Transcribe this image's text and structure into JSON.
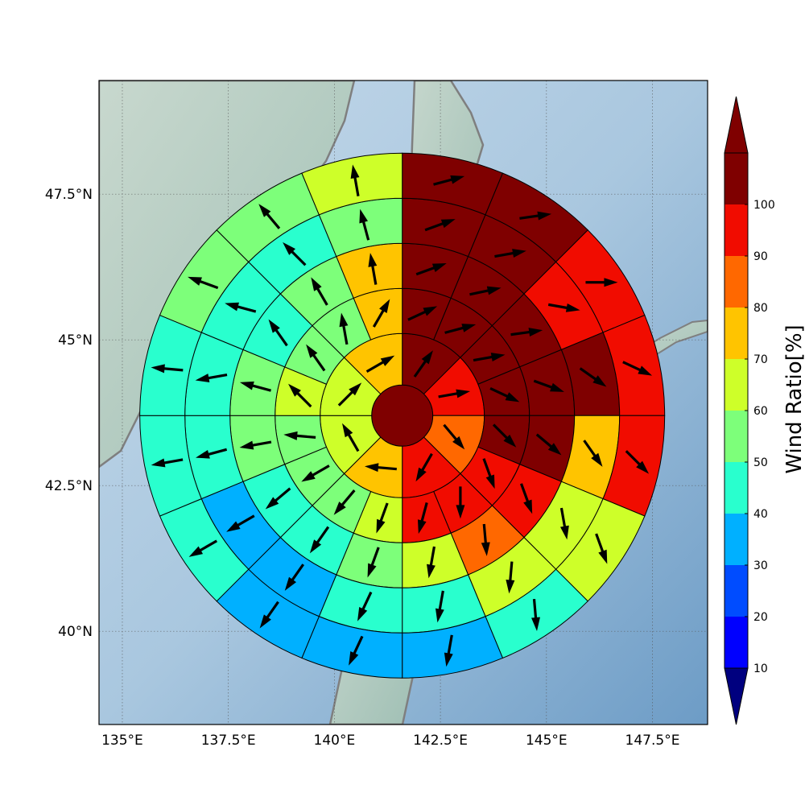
{
  "chart_data": {
    "type": "heatmap",
    "subtype": "polar-sector-map",
    "map": {
      "lon_ticks": [
        "135°E",
        "137.5°E",
        "140°E",
        "142.5°E",
        "145°E",
        "147.5°E"
      ],
      "lat_ticks": [
        "47.5°N",
        "45°N",
        "42.5°N",
        "40°N"
      ],
      "lon_tick_values": [
        135,
        137.5,
        140,
        142.5,
        145,
        147.5
      ],
      "lat_tick_values": [
        47.5,
        45,
        42.5,
        40
      ],
      "xlim": [
        134.45,
        148.8
      ],
      "ylim": [
        38.4,
        49.45
      ],
      "grid": true,
      "center": [
        141.6,
        43.7
      ],
      "sea_color": "#a9c7df",
      "land_color": "#b5cfc6",
      "coast_color": "#7f7f7f"
    },
    "colorbar": {
      "label": "Wind Ratio[%]",
      "ticks": [
        "10",
        "20",
        "30",
        "40",
        "50",
        "60",
        "70",
        "80",
        "90",
        "100"
      ],
      "bounds": [
        10,
        20,
        30,
        40,
        50,
        60,
        70,
        80,
        90,
        100
      ],
      "colors": [
        "#0000ff",
        "#004cff",
        "#00b0ff",
        "#29ffce",
        "#7dff7a",
        "#ceff29",
        "#ffc400",
        "#ff6800",
        "#f10c00",
        "#7f0000"
      ],
      "under_color": "#00007f",
      "over_color": "#7f0000",
      "extend": "both"
    },
    "rings": [
      {
        "center": true,
        "value": 100
      },
      {
        "sectors": 8,
        "values": [
          100,
          95,
          85,
          95,
          72,
          65,
          65,
          75
        ],
        "arrows_deg": [
          55,
          10,
          -50,
          -120,
          175,
          120,
          45,
          30
        ]
      },
      {
        "sectors": 16,
        "values": [
          100,
          100,
          100,
          100,
          100,
          95,
          95,
          95,
          65,
          55,
          55,
          55,
          65,
          55,
          55,
          72
        ],
        "arrows_deg": [
          25,
          15,
          10,
          -25,
          -45,
          -70,
          -90,
          -105,
          -110,
          -130,
          -150,
          175,
          135,
          125,
          100,
          60
        ]
      },
      {
        "sectors": 16,
        "values": [
          100,
          100,
          100,
          100,
          100,
          95,
          85,
          65,
          55,
          45,
          45,
          55,
          55,
          45,
          55,
          72
        ],
        "arrows_deg": [
          20,
          12,
          8,
          -20,
          -40,
          -70,
          -85,
          -100,
          -110,
          -125,
          -140,
          -170,
          165,
          125,
          120,
          100
        ]
      },
      {
        "sectors": 16,
        "values": [
          100,
          100,
          95,
          100,
          72,
          65,
          65,
          45,
          45,
          35,
          35,
          45,
          45,
          45,
          45,
          55
        ],
        "arrows_deg": [
          20,
          10,
          -10,
          -35,
          -55,
          -80,
          -95,
          -100,
          -115,
          -125,
          -150,
          -165,
          -170,
          165,
          135,
          105
        ]
      },
      {
        "sectors": 16,
        "values": [
          100,
          100,
          95,
          95,
          95,
          65,
          45,
          35,
          35,
          35,
          45,
          45,
          45,
          55,
          55,
          65
        ],
        "arrows_deg": [
          15,
          8,
          0,
          -25,
          -45,
          -70,
          -85,
          -100,
          -115,
          -125,
          -150,
          -170,
          175,
          160,
          130,
          100
        ]
      }
    ]
  }
}
